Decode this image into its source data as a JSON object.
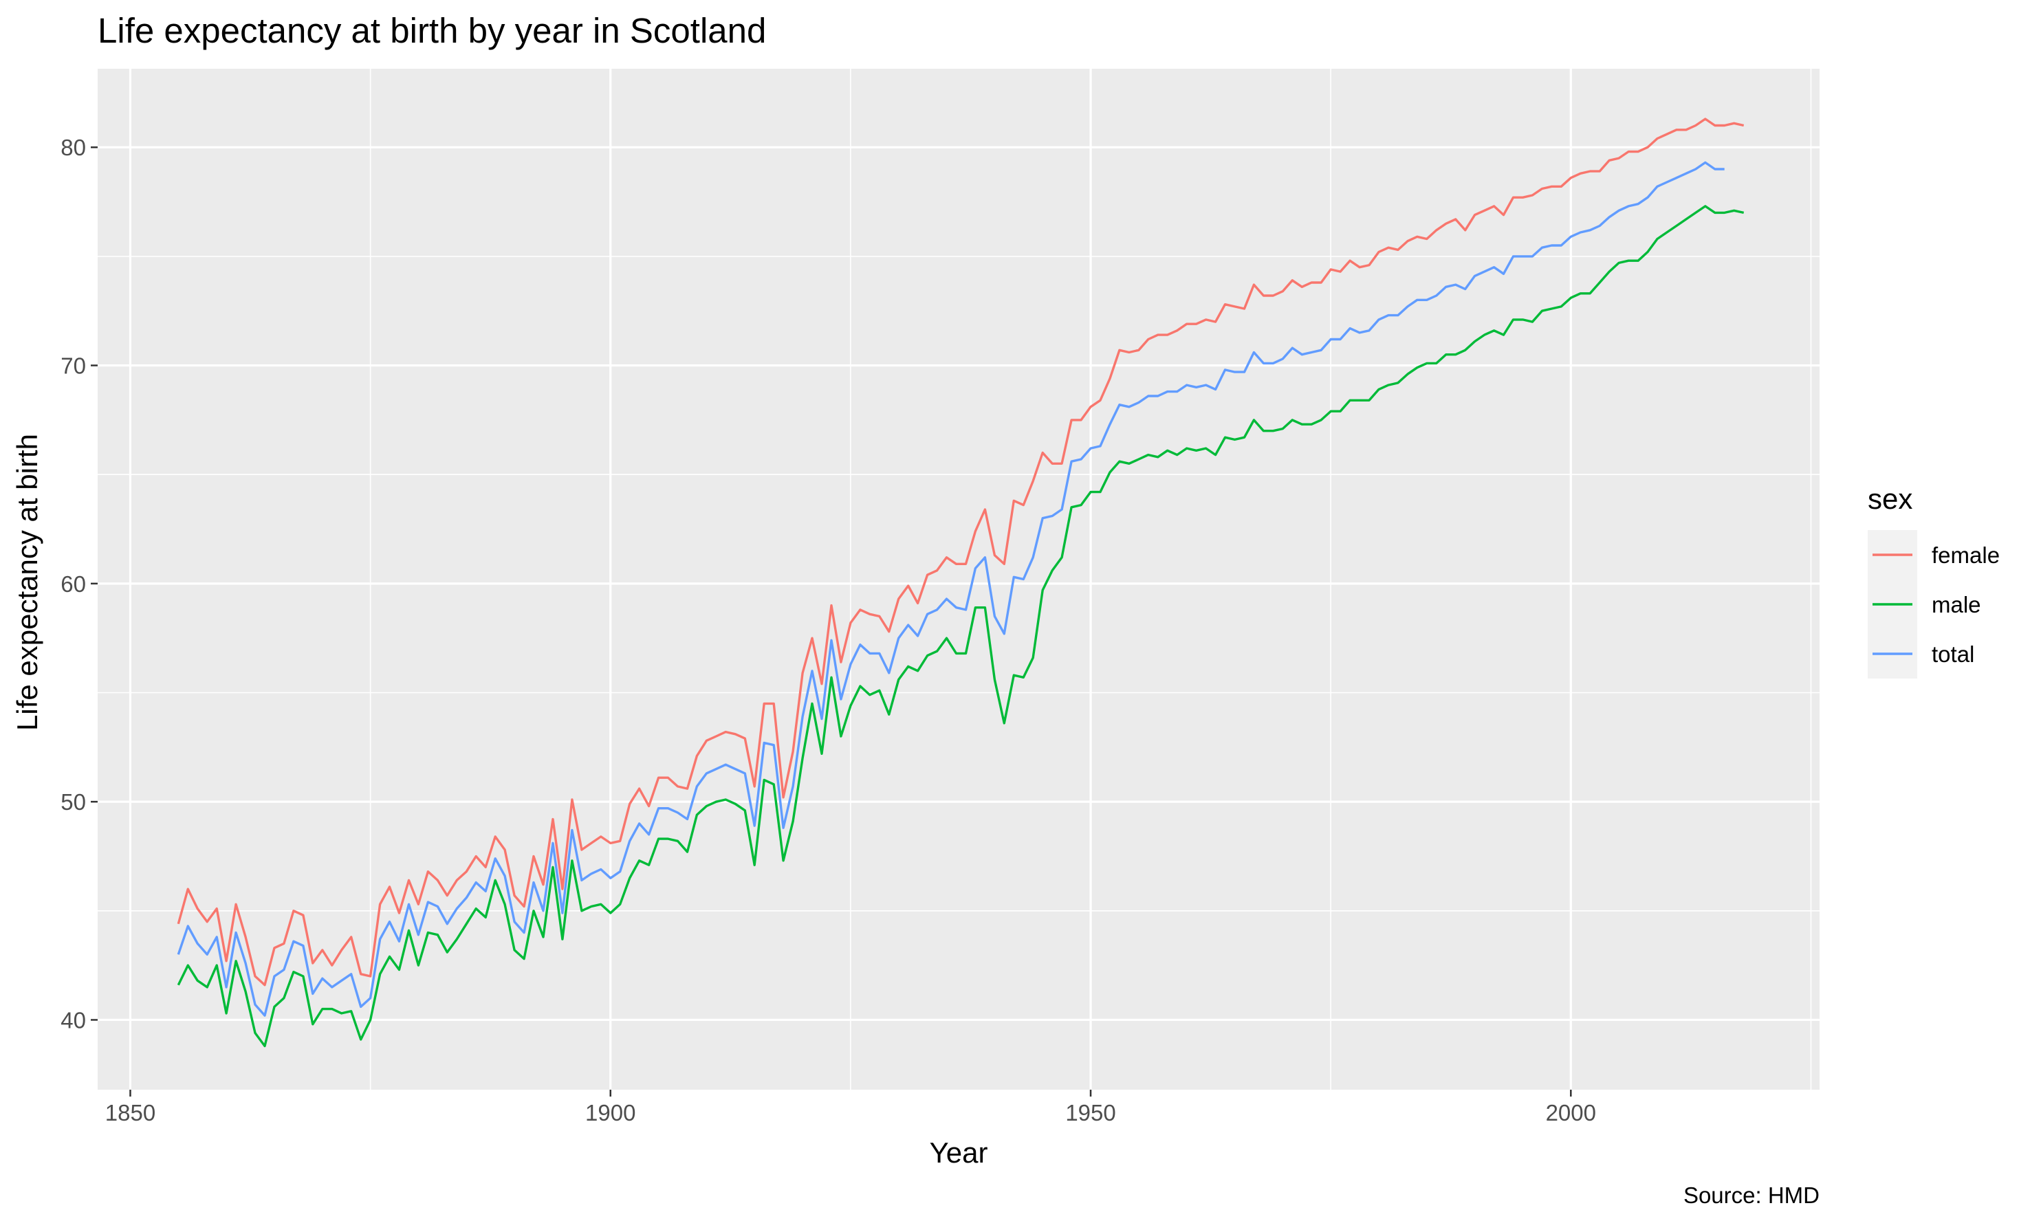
{
  "chart_data": {
    "type": "line",
    "title": "Life expectancy at birth by year in Scotland",
    "xlabel": "Year",
    "ylabel": "Life expectancy at birth",
    "caption": "Source: HMD",
    "xlim": [
      1846.6,
      2025.9
    ],
    "ylim": [
      36.8,
      83.6
    ],
    "xticks": [
      1850,
      1900,
      1950,
      2000
    ],
    "yticks": [
      40,
      50,
      60,
      70,
      80
    ],
    "grid": true,
    "legend_title": "sex",
    "legend_position": "right",
    "x": [
      1855,
      1856,
      1857,
      1858,
      1859,
      1860,
      1861,
      1862,
      1863,
      1864,
      1865,
      1866,
      1867,
      1868,
      1869,
      1870,
      1871,
      1872,
      1873,
      1874,
      1875,
      1876,
      1877,
      1878,
      1879,
      1880,
      1881,
      1882,
      1883,
      1884,
      1885,
      1886,
      1887,
      1888,
      1889,
      1890,
      1891,
      1892,
      1893,
      1894,
      1895,
      1896,
      1897,
      1898,
      1899,
      1900,
      1901,
      1902,
      1903,
      1904,
      1905,
      1906,
      1907,
      1908,
      1909,
      1910,
      1911,
      1912,
      1913,
      1914,
      1915,
      1916,
      1917,
      1918,
      1919,
      1920,
      1921,
      1922,
      1923,
      1924,
      1925,
      1926,
      1927,
      1928,
      1929,
      1930,
      1931,
      1932,
      1933,
      1934,
      1935,
      1936,
      1937,
      1938,
      1939,
      1940,
      1941,
      1942,
      1943,
      1944,
      1945,
      1946,
      1947,
      1948,
      1949,
      1950,
      1951,
      1952,
      1953,
      1954,
      1955,
      1956,
      1957,
      1958,
      1959,
      1960,
      1961,
      1962,
      1963,
      1964,
      1965,
      1966,
      1967,
      1968,
      1969,
      1970,
      1971,
      1972,
      1973,
      1974,
      1975,
      1976,
      1977,
      1978,
      1979,
      1980,
      1981,
      1982,
      1983,
      1984,
      1985,
      1986,
      1987,
      1988,
      1989,
      1990,
      1991,
      1992,
      1993,
      1994,
      1995,
      1996,
      1997,
      1998,
      1999,
      2000,
      2001,
      2002,
      2003,
      2004,
      2005,
      2006,
      2007,
      2008,
      2009,
      2010,
      2011,
      2012,
      2013,
      2014,
      2015,
      2016,
      2017,
      2018
    ],
    "series": [
      {
        "name": "female",
        "color": "#F8766D",
        "values": [
          44.4,
          46.0,
          45.1,
          44.5,
          45.1,
          42.7,
          45.3,
          43.8,
          42.0,
          41.6,
          43.3,
          43.5,
          45.0,
          44.8,
          42.6,
          43.2,
          42.5,
          43.2,
          43.8,
          42.1,
          42.0,
          45.3,
          46.1,
          44.9,
          46.4,
          45.3,
          46.8,
          46.4,
          45.7,
          46.4,
          46.8,
          47.5,
          47.0,
          48.4,
          47.8,
          45.7,
          45.2,
          47.5,
          46.2,
          49.2,
          46.0,
          50.1,
          47.8,
          48.1,
          48.4,
          48.1,
          48.2,
          49.9,
          50.6,
          49.8,
          51.1,
          51.1,
          50.7,
          50.6,
          52.1,
          52.8,
          53.0,
          53.2,
          53.1,
          52.9,
          50.7,
          54.5,
          54.5,
          50.2,
          52.3,
          55.9,
          57.5,
          55.4,
          59.0,
          56.4,
          58.2,
          58.8,
          58.6,
          58.5,
          57.8,
          59.3,
          59.9,
          59.1,
          60.4,
          60.6,
          61.2,
          60.9,
          60.9,
          62.4,
          63.4,
          61.3,
          60.9,
          63.8,
          63.6,
          64.7,
          66.0,
          65.5,
          65.5,
          67.5,
          67.5,
          68.1,
          68.4,
          69.4,
          70.7,
          70.6,
          70.7,
          71.2,
          71.4,
          71.4,
          71.6,
          71.9,
          71.9,
          72.1,
          72.0,
          72.8,
          72.7,
          72.6,
          73.7,
          73.2,
          73.2,
          73.4,
          73.9,
          73.6,
          73.8,
          73.8,
          74.4,
          74.3,
          74.8,
          74.5,
          74.6,
          75.2,
          75.4,
          75.3,
          75.7,
          75.9,
          75.8,
          76.2,
          76.5,
          76.7,
          76.2,
          76.9,
          77.1,
          77.3,
          76.9,
          77.7,
          77.7,
          77.8,
          78.1,
          78.2,
          78.2,
          78.6,
          78.8,
          78.9,
          78.9,
          79.4,
          79.5,
          79.8,
          79.8,
          80.0,
          80.4,
          80.6,
          80.8,
          80.8,
          81.0,
          81.3,
          81.0,
          81.0,
          81.1,
          81.0
        ]
      },
      {
        "name": "male",
        "color": "#00BA38",
        "values": [
          41.6,
          42.5,
          41.8,
          41.5,
          42.5,
          40.3,
          42.7,
          41.3,
          39.4,
          38.8,
          40.6,
          41.0,
          42.2,
          42.0,
          39.8,
          40.5,
          40.5,
          40.3,
          40.4,
          39.1,
          40.0,
          42.1,
          42.9,
          42.3,
          44.1,
          42.5,
          44.0,
          43.9,
          43.1,
          43.7,
          44.4,
          45.1,
          44.7,
          46.4,
          45.3,
          43.2,
          42.8,
          45.0,
          43.8,
          47.0,
          43.7,
          47.3,
          45.0,
          45.2,
          45.3,
          44.9,
          45.3,
          46.5,
          47.3,
          47.1,
          48.3,
          48.3,
          48.2,
          47.7,
          49.4,
          49.8,
          50.0,
          50.1,
          49.9,
          49.6,
          47.1,
          51.0,
          50.8,
          47.3,
          49.1,
          52.0,
          54.5,
          52.2,
          55.7,
          53.0,
          54.4,
          55.3,
          54.9,
          55.1,
          54.0,
          55.6,
          56.2,
          56.0,
          56.7,
          56.9,
          57.5,
          56.8,
          56.8,
          58.9,
          58.9,
          55.6,
          53.6,
          55.8,
          55.7,
          56.6,
          59.7,
          60.6,
          61.2,
          63.5,
          63.6,
          64.2,
          64.2,
          65.1,
          65.6,
          65.5,
          65.7,
          65.9,
          65.8,
          66.1,
          65.9,
          66.2,
          66.1,
          66.2,
          65.9,
          66.7,
          66.6,
          66.7,
          67.5,
          67.0,
          67.0,
          67.1,
          67.5,
          67.3,
          67.3,
          67.5,
          67.9,
          67.9,
          68.4,
          68.4,
          68.4,
          68.9,
          69.1,
          69.2,
          69.6,
          69.9,
          70.1,
          70.1,
          70.5,
          70.5,
          70.7,
          71.1,
          71.4,
          71.6,
          71.4,
          72.1,
          72.1,
          72.0,
          72.5,
          72.6,
          72.7,
          73.1,
          73.3,
          73.3,
          73.8,
          74.3,
          74.7,
          74.8,
          74.8,
          75.2,
          75.8,
          76.1,
          76.4,
          76.7,
          77.0,
          77.3,
          77.0,
          77.0,
          77.1,
          77.0
        ]
      },
      {
        "name": "total",
        "color": "#619CFF",
        "values": [
          43.0,
          44.3,
          43.5,
          43.0,
          43.8,
          41.5,
          44.0,
          42.6,
          40.7,
          40.2,
          42.0,
          42.3,
          43.6,
          43.4,
          41.2,
          41.9,
          41.5,
          41.8,
          42.1,
          40.6,
          41.0,
          43.7,
          44.5,
          43.6,
          45.3,
          43.9,
          45.4,
          45.2,
          44.4,
          45.1,
          45.6,
          46.3,
          45.9,
          47.4,
          46.6,
          44.5,
          44.0,
          46.3,
          45.0,
          48.1,
          44.9,
          48.7,
          46.4,
          46.7,
          46.9,
          46.5,
          46.8,
          48.2,
          49.0,
          48.5,
          49.7,
          49.7,
          49.5,
          49.2,
          50.7,
          51.3,
          51.5,
          51.7,
          51.5,
          51.3,
          48.9,
          52.7,
          52.6,
          48.8,
          50.7,
          53.9,
          56.0,
          53.8,
          57.4,
          54.7,
          56.3,
          57.2,
          56.8,
          56.8,
          55.9,
          57.5,
          58.1,
          57.6,
          58.6,
          58.8,
          59.3,
          58.9,
          58.8,
          60.7,
          61.2,
          58.5,
          57.7,
          60.3,
          60.2,
          61.2,
          63.0,
          63.1,
          63.4,
          65.6,
          65.7,
          66.2,
          66.3,
          67.3,
          68.2,
          68.1,
          68.3,
          68.6,
          68.6,
          68.8,
          68.8,
          69.1,
          69.0,
          69.1,
          68.9,
          69.8,
          69.7,
          69.7,
          70.6,
          70.1,
          70.1,
          70.3,
          70.8,
          70.5,
          70.6,
          70.7,
          71.2,
          71.2,
          71.7,
          71.5,
          71.6,
          72.1,
          72.3,
          72.3,
          72.7,
          73.0,
          73.0,
          73.2,
          73.6,
          73.7,
          73.5,
          74.1,
          74.3,
          74.5,
          74.2,
          75.0,
          75.0,
          75.0,
          75.4,
          75.5,
          75.5,
          75.9,
          76.1,
          76.2,
          76.4,
          76.8,
          77.1,
          77.3,
          77.4,
          77.7,
          78.2,
          78.4,
          78.6,
          78.8,
          79.0,
          79.3,
          79.0,
          79.0,
          null,
          null
        ]
      }
    ]
  }
}
